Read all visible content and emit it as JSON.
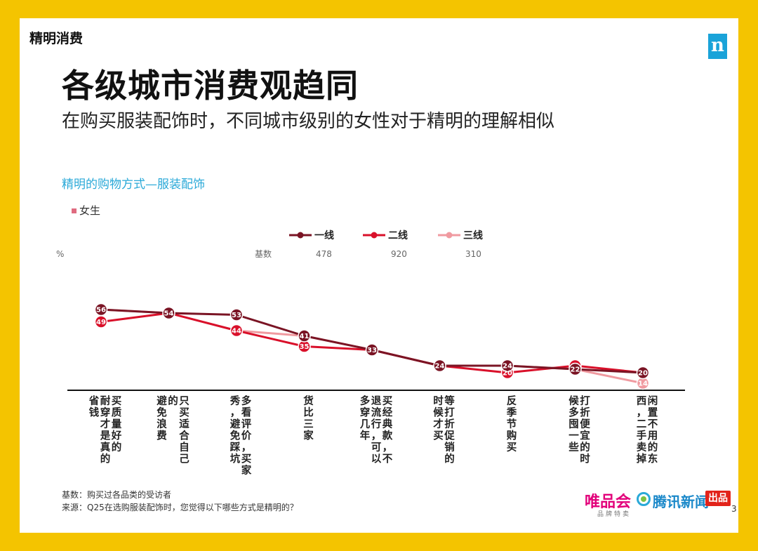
{
  "header": {
    "section": "精明消费",
    "logo_letter": "n",
    "title": "各级城市消费观趋同",
    "subtitle": "在购买服装配饰时，不同城市级别的女性对于精明的理解相似"
  },
  "chart_data": {
    "type": "line",
    "title": "精明的购物方式—服装配饰",
    "gender_label": "女生",
    "unit_label": "%",
    "base_label": "基数",
    "categories": [
      [
        "买质量好的",
        "耐穿才是真的",
        "省钱"
      ],
      [
        "只买适合自己",
        "的",
        "避免浪费"
      ],
      [
        "多看评价，买家",
        "秀，避免踩坑"
      ],
      [
        "货比三家"
      ],
      [
        "买经典款，不",
        "退流行，可以",
        "多穿几年"
      ],
      [
        "等打折促销的",
        "时候才买"
      ],
      [
        "反季节购买"
      ],
      [
        "打折便宜的时",
        "候多囤一些"
      ],
      [
        "闲置不用的东",
        "西，二手卖掉"
      ]
    ],
    "series": [
      {
        "name": "一线",
        "base": "478",
        "color": "#7a1424",
        "values": [
          56,
          54,
          53,
          41,
          33,
          24,
          24,
          22,
          20
        ]
      },
      {
        "name": "二线",
        "base": "920",
        "color": "#d9102a",
        "values": [
          49,
          54,
          44,
          35,
          33,
          24,
          20,
          24,
          20
        ]
      },
      {
        "name": "三线",
        "base": "310",
        "color": "#f09aa0",
        "values": [
          56,
          54,
          44,
          41,
          33,
          24,
          24,
          22,
          14
        ]
      }
    ],
    "data_labels": [
      56,
      54,
      53,
      41,
      33,
      24,
      24,
      22,
      20
    ],
    "data_labels_lower": [
      49,
      null,
      44,
      35,
      null,
      null,
      20,
      null,
      14
    ],
    "ylim": [
      0,
      70
    ],
    "legend_position": "top-right",
    "grid": false
  },
  "footer": {
    "base_note": "基数：购买过各品类的受访者",
    "source_note": "来源：Q25在选购服装配饰时，您觉得以下哪些方式是精明的？",
    "page_number": "3"
  },
  "brands": {
    "vip": "唯品会",
    "vip_sub": "品牌特卖",
    "tencent": "腾讯新闻",
    "chupin": "出品"
  }
}
